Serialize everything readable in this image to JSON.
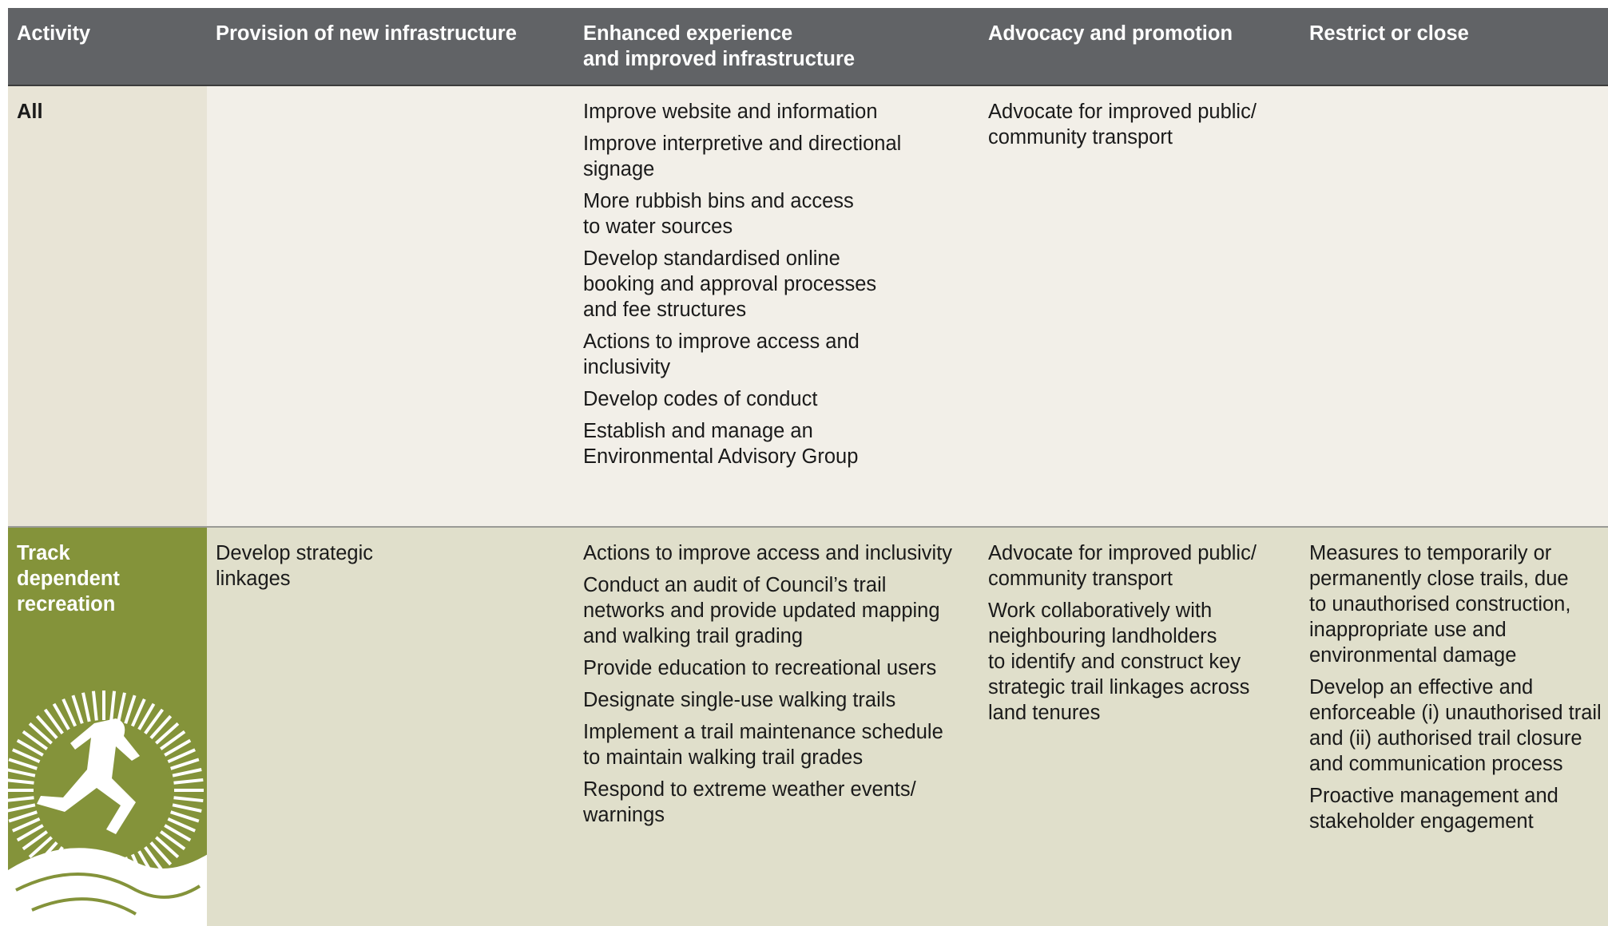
{
  "table": {
    "header": [
      "Activity",
      "Provision of new infrastructure",
      "Enhanced experience\nand improved infrastructure",
      "Advocacy and promotion",
      "Restrict or close"
    ],
    "rows": [
      [
        "All",
        [],
        [
          "Improve website and information",
          "Improve interpretive and directional\nsignage",
          "More rubbish bins and access\nto water sources",
          "Develop standardised online\nbooking and approval processes\nand fee structures",
          "Actions to improve access and\ninclusivity",
          "Develop codes of conduct",
          "Establish and manage an\nEnvironmental Advisory Group"
        ],
        [
          "Advocate for improved public/\ncommunity transport"
        ],
        []
      ],
      [
        "Track\ndependent\nrecreation",
        [
          "Develop strategic\nlinkages"
        ],
        [
          "Actions to improve access and inclusivity",
          "Conduct an audit of Council’s trail\nnetworks and provide updated mapping\nand walking trail grading",
          "Provide education to recreational users",
          "Designate single-use walking trails",
          "Implement a trail maintenance schedule\nto maintain walking trail grades",
          "Respond to extreme weather events/\nwarnings"
        ],
        [
          "Advocate for improved public/\ncommunity transport",
          "Work collaboratively with\nneighbouring landholders\nto identify and construct key\nstrategic trail linkages across\nland tenures"
        ],
        [
          "Measures to temporarily or\npermanently close trails, due\nto unauthorised construction,\ninappropriate use and\nenvironmental damage",
          "Develop an effective and\nenforceable (i) unauthorised trail\nand (ii) authorised trail closure\nand communication process",
          "Proactive management and\nstakeholder engagement"
        ]
      ]
    ]
  }
}
